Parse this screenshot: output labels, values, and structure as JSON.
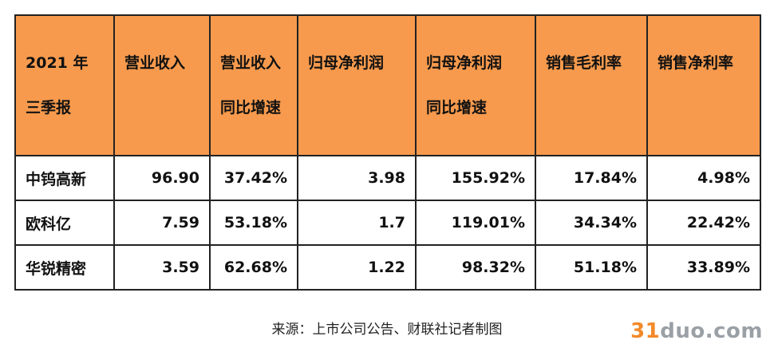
{
  "table": {
    "headers": [
      [
        "2021 年",
        "三季报"
      ],
      [
        "营业收入",
        ""
      ],
      [
        "营业收入",
        "同比增速"
      ],
      [
        "归母净利润",
        ""
      ],
      [
        "归母净利润",
        "同比增速"
      ],
      [
        "销售毛利率",
        ""
      ],
      [
        "销售净利率",
        ""
      ]
    ],
    "rows": [
      [
        "中钨高新",
        "96.90",
        "37.42%",
        "3.98",
        "155.92%",
        "17.84%",
        "4.98%"
      ],
      [
        "欧科亿",
        "7.59",
        "53.18%",
        "1.7",
        "119.01%",
        "34.34%",
        "22.42%"
      ],
      [
        "华锐精密",
        "3.59",
        "62.68%",
        "1.22",
        "98.32%",
        "51.18%",
        "33.89%"
      ]
    ]
  },
  "source_note": "来源：上市公司公告、财联社记者制图",
  "watermark": {
    "num": "31",
    "rest": "duo.com"
  },
  "colors": {
    "header_bg": "#f79a4d",
    "watermark_orange": "#f28a2a",
    "watermark_gray": "#9aa0a6"
  }
}
